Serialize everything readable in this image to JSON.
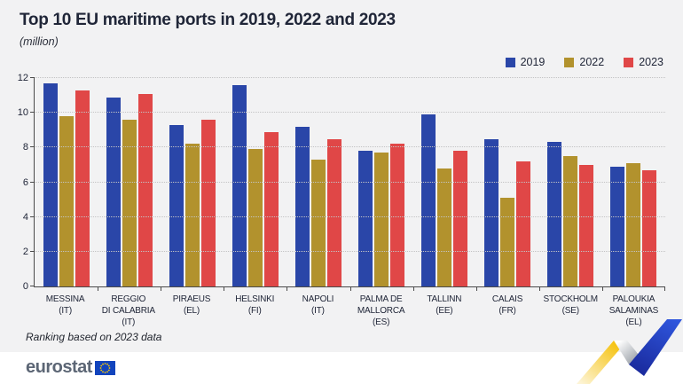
{
  "title": "Top 10 EU maritime ports in 2019, 2022 and 2023",
  "subtitle": "(million)",
  "footnote": "Ranking based on 2023 data",
  "brand": {
    "wordmark": "eurostat"
  },
  "chart_data": {
    "type": "bar",
    "title": "Top 10 EU maritime ports in 2019, 2022 and 2023",
    "unit_label": "(million)",
    "categories": [
      [
        "MESSINA",
        "(IT)"
      ],
      [
        "REGGIO",
        "DI CALABRIA (IT)"
      ],
      [
        "PIRAEUS",
        "(EL)"
      ],
      [
        "HELSINKI",
        "(FI)"
      ],
      [
        "NAPOLI",
        "(IT)"
      ],
      [
        "PALMA DE",
        "MALLORCA (ES)"
      ],
      [
        "TALLINN",
        "(EE)"
      ],
      [
        "CALAIS",
        "(FR)"
      ],
      [
        "STOCKHOLM",
        "(SE)"
      ],
      [
        "PALOUKIA",
        "SALAMINAS (EL)"
      ]
    ],
    "series": [
      {
        "name": "2019",
        "color": "#2a46a8",
        "values": [
          11.7,
          10.9,
          9.3,
          11.6,
          9.2,
          7.8,
          9.9,
          8.5,
          8.3,
          6.9
        ]
      },
      {
        "name": "2022",
        "color": "#b2922d",
        "values": [
          9.8,
          9.6,
          8.2,
          7.9,
          7.3,
          7.7,
          6.8,
          5.1,
          7.5,
          7.1
        ]
      },
      {
        "name": "2023",
        "color": "#e04747",
        "values": [
          11.3,
          11.1,
          9.6,
          8.9,
          8.5,
          8.2,
          7.8,
          7.2,
          7.0,
          6.7
        ]
      }
    ],
    "ylim": [
      0,
      12
    ],
    "yticks": [
      0,
      2,
      4,
      6,
      8,
      10,
      12
    ],
    "grid": "horizontal-dotted",
    "legend_position": "top-right"
  },
  "decoration": {
    "zigzag_yellow": "#f5c10a",
    "zigzag_yellow_fade": "#fdf4d5",
    "zigzag_gray": "#9ba1a8",
    "zigzag_blue_dark": "#1a2a9d",
    "zigzag_blue_light": "#2f56dd",
    "eu_flag_blue": "#1244bd",
    "eu_star_yellow": "#ffcc00"
  }
}
